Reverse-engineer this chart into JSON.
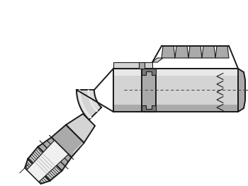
{
  "bg_color": "#ffffff",
  "line_color": "#1a1a1a",
  "fill_light": "#d4d4d4",
  "fill_mid": "#aaaaaa",
  "fill_dark": "#787878",
  "fill_white": "#f0f0f0",
  "fill_vlight": "#e8e8e8",
  "figsize": [
    3.5,
    2.63
  ],
  "dpi": 100
}
